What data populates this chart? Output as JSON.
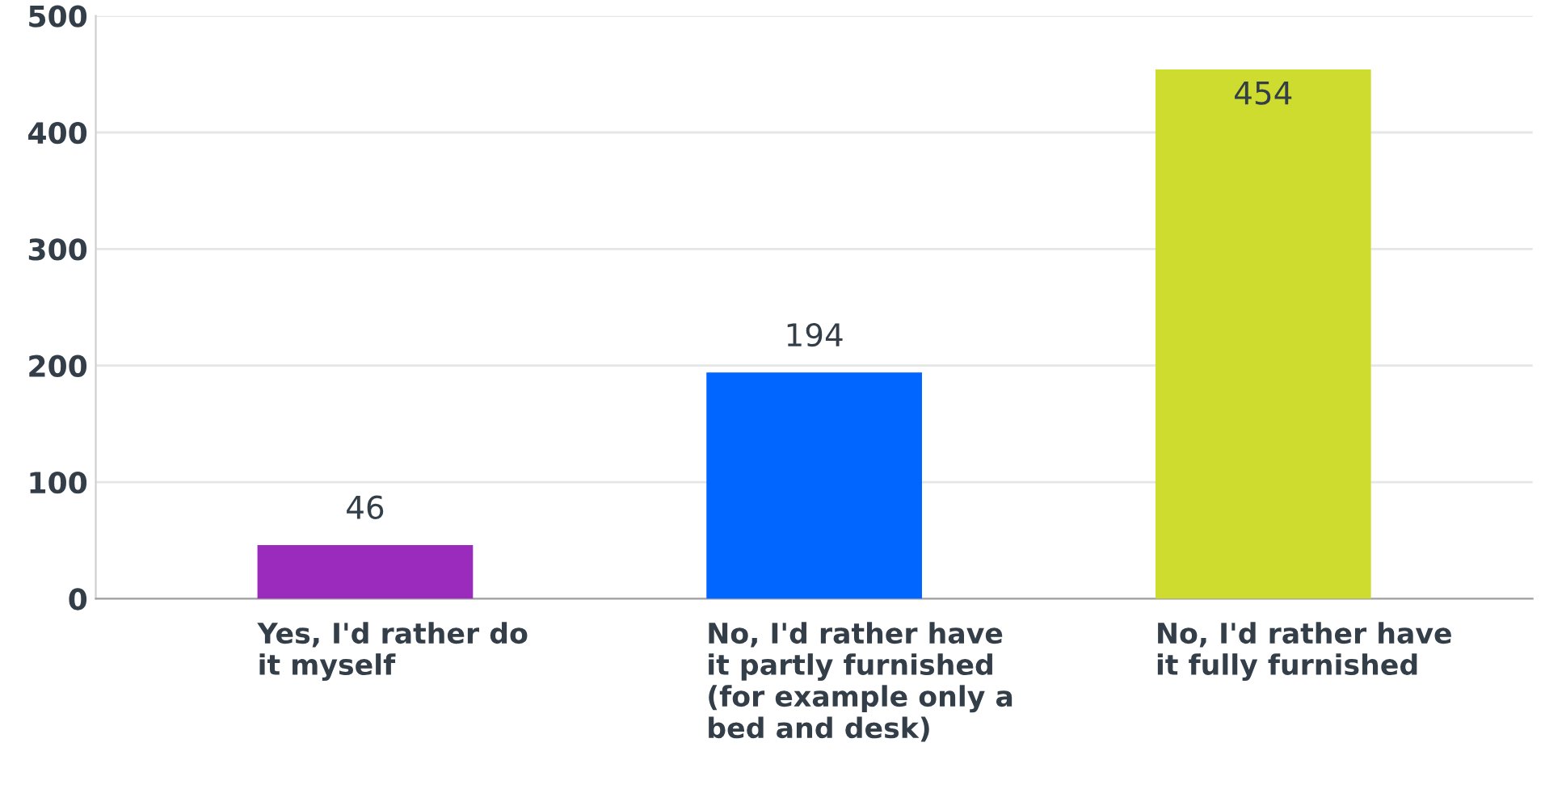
{
  "chart_data": {
    "type": "bar",
    "categories": [
      "Yes, I'd rather do\nit myself",
      "No, I'd rather have\nit partly furnished\n(for example only a\nbed and desk)",
      "No, I'd rather have\nit fully furnished"
    ],
    "values": [
      46,
      194,
      454
    ],
    "colors": [
      "#9b2bbd",
      "#0066ff",
      "#cddc2f"
    ],
    "ylim": [
      0,
      500
    ],
    "yticks": [
      0,
      100,
      200,
      300,
      400,
      500
    ],
    "grid": "y",
    "data_labels": true
  }
}
